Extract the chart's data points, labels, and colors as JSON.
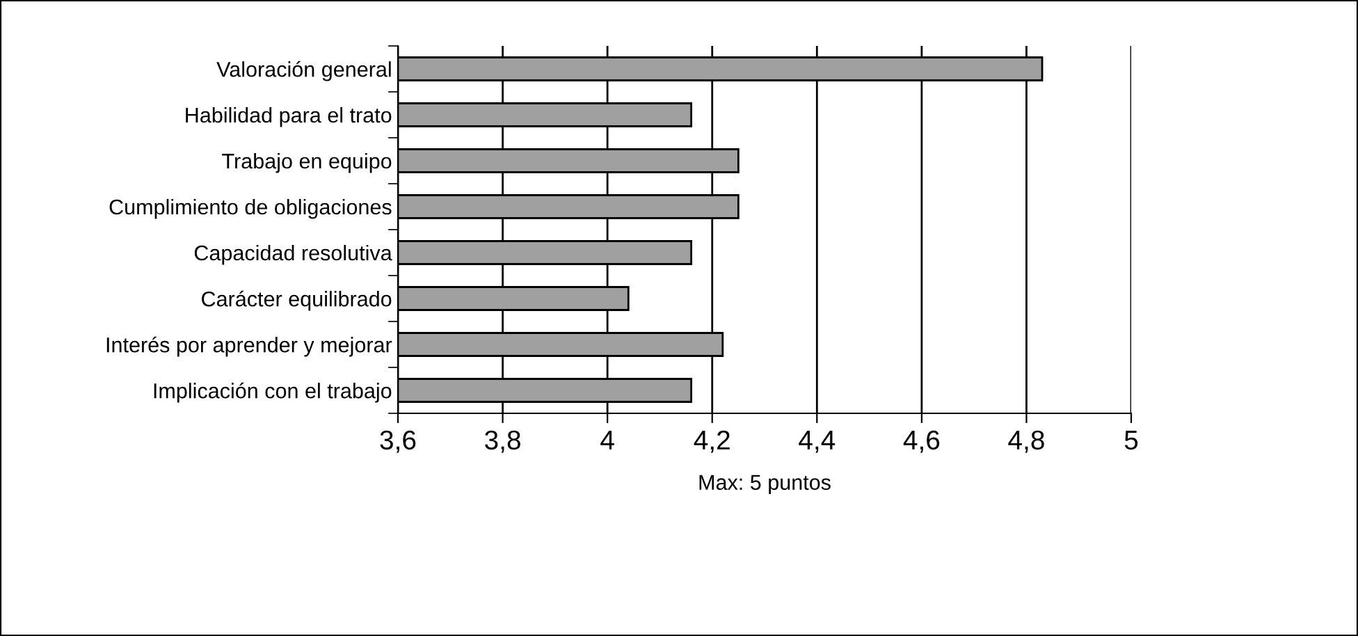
{
  "chart_data": {
    "type": "bar",
    "orientation": "horizontal",
    "categories": [
      "Valoración general",
      "Habilidad para el trato",
      "Trabajo en equipo",
      "Cumplimiento de obligaciones",
      "Capacidad resolutiva",
      "Carácter equilibrado",
      "Interés por aprender y mejorar",
      "Implicación con el trabajo"
    ],
    "values": [
      4.83,
      4.16,
      4.25,
      4.25,
      4.16,
      4.04,
      4.22,
      4.16
    ],
    "color": "#a0a0a0",
    "xlabel": "Max: 5 puntos",
    "xlim": [
      3.6,
      5
    ],
    "xticks": [
      {
        "value": 3.6,
        "label": "3,6"
      },
      {
        "value": 3.8,
        "label": "3,8"
      },
      4,
      {
        "value": 4.2,
        "label": "4,2"
      },
      {
        "value": 4.4,
        "label": "4,4"
      },
      {
        "value": 4.6,
        "label": "4,6"
      },
      {
        "value": 4.8,
        "label": "4,8"
      },
      5
    ],
    "grid": "x",
    "legend": false
  }
}
